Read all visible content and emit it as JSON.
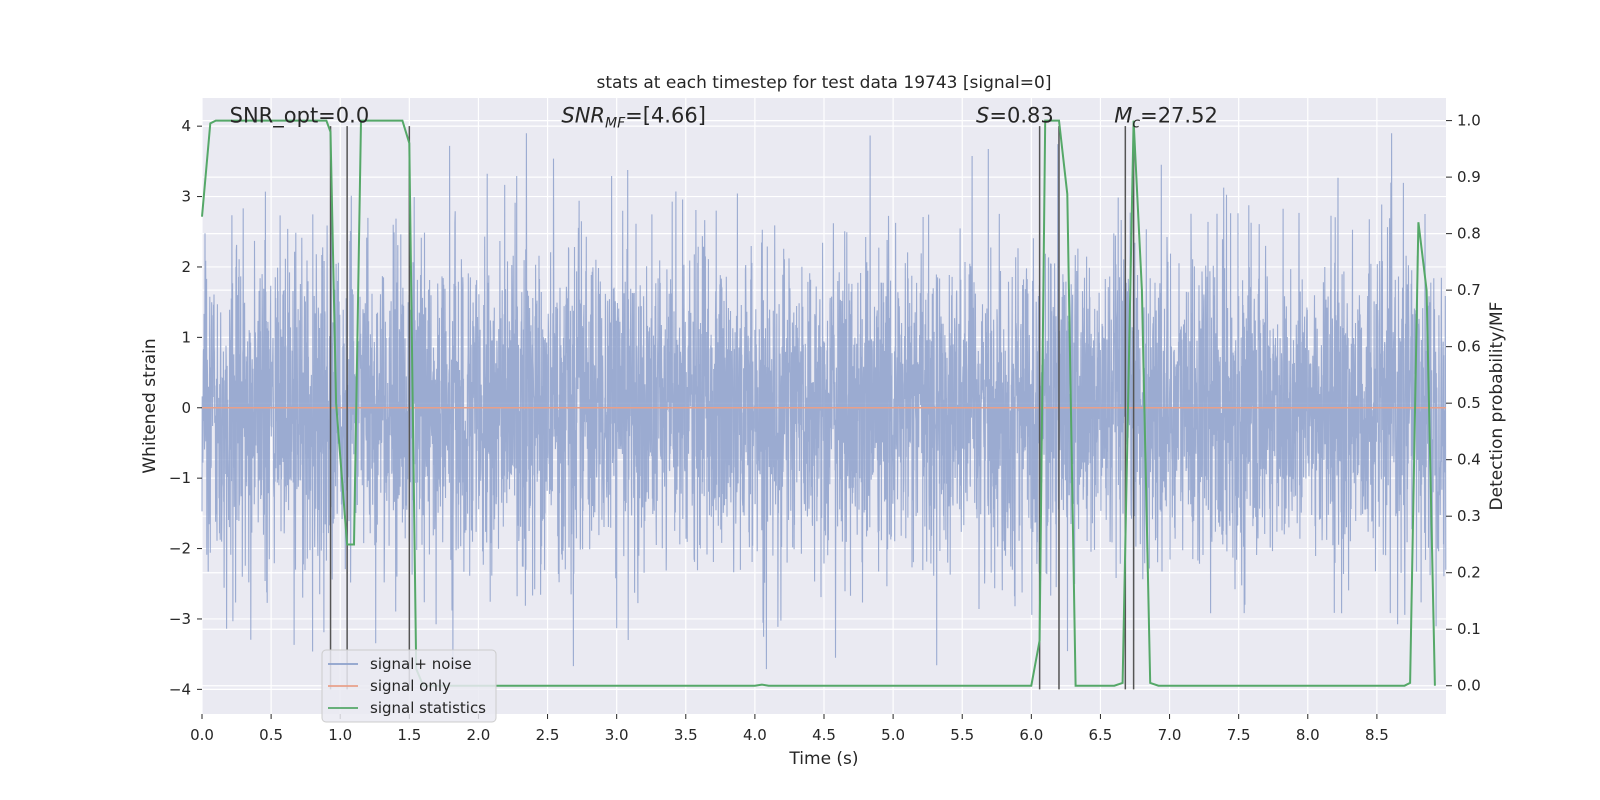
{
  "chart_data": {
    "type": "line",
    "title": "stats at each timestep for test data 19743 [signal=0]",
    "xlabel": "Time (s)",
    "ylabel": "Whitened strain",
    "y2label": "Detection probability/MF",
    "xlim": [
      0.0,
      9.0
    ],
    "ylim": [
      -4.35,
      4.4
    ],
    "y2lim": [
      -0.05,
      1.04
    ],
    "xticks": [
      "0.0",
      "0.5",
      "1.0",
      "1.5",
      "2.0",
      "2.5",
      "3.0",
      "3.5",
      "4.0",
      "4.5",
      "5.0",
      "5.5",
      "6.0",
      "6.5",
      "7.0",
      "7.5",
      "8.0",
      "8.5"
    ],
    "yticks": [
      "4",
      "3",
      "2",
      "1",
      "0",
      "−1",
      "−2",
      "−3",
      "−4"
    ],
    "y2ticks": [
      "1.0",
      "0.9",
      "0.8",
      "0.7",
      "0.6",
      "0.5",
      "0.4",
      "0.3",
      "0.2",
      "0.1",
      "0.0"
    ],
    "grid": true,
    "legend_position": "lower-left",
    "annotations": [
      {
        "text": "SNR_opt=0.0",
        "x": 0.2,
        "y": 4.05
      },
      {
        "text": "SNR_MF=[4.66]",
        "x": 2.6,
        "y": 4.05
      },
      {
        "text": "S=0.83",
        "x": 5.6,
        "y": 4.05
      },
      {
        "text": "M_c=27.52",
        "x": 6.6,
        "y": 4.05
      }
    ],
    "vertical_lines": [
      0.93,
      1.05,
      1.5,
      6.06,
      6.2,
      6.68,
      6.74
    ],
    "series": [
      {
        "name": "signal+ noise",
        "color": "#8da0cb",
        "axis": "left",
        "sample_rate": 600,
        "amplitude_std": 1.0,
        "peak_envelope": [
          2.2,
          -2.4
        ]
      },
      {
        "name": "signal only",
        "color": "#e8a08a",
        "axis": "left",
        "x": [
          0.0,
          9.0
        ],
        "y": [
          0.0,
          0.0
        ]
      },
      {
        "name": "signal statistics",
        "color": "#55a868",
        "axis": "right",
        "x": [
          0.0,
          0.06,
          0.1,
          0.15,
          0.9,
          0.93,
          0.97,
          1.05,
          1.1,
          1.15,
          1.2,
          1.45,
          1.5,
          1.55,
          1.6,
          4.0,
          4.05,
          4.1,
          6.0,
          6.06,
          6.1,
          6.15,
          6.2,
          6.26,
          6.32,
          6.6,
          6.66,
          6.74,
          6.8,
          6.86,
          6.92,
          8.7,
          8.74,
          8.8,
          8.86,
          8.92
        ],
        "y": [
          0.83,
          0.995,
          1.0,
          1.0,
          1.0,
          0.98,
          0.5,
          0.25,
          0.25,
          1.0,
          1.0,
          1.0,
          0.96,
          0.03,
          0.0,
          0.0,
          0.002,
          0.0,
          0.0,
          0.08,
          1.0,
          1.0,
          1.0,
          0.87,
          0.0,
          0.0,
          0.005,
          1.0,
          0.7,
          0.005,
          0.0,
          0.0,
          0.005,
          0.82,
          0.7,
          0.0
        ]
      }
    ]
  }
}
